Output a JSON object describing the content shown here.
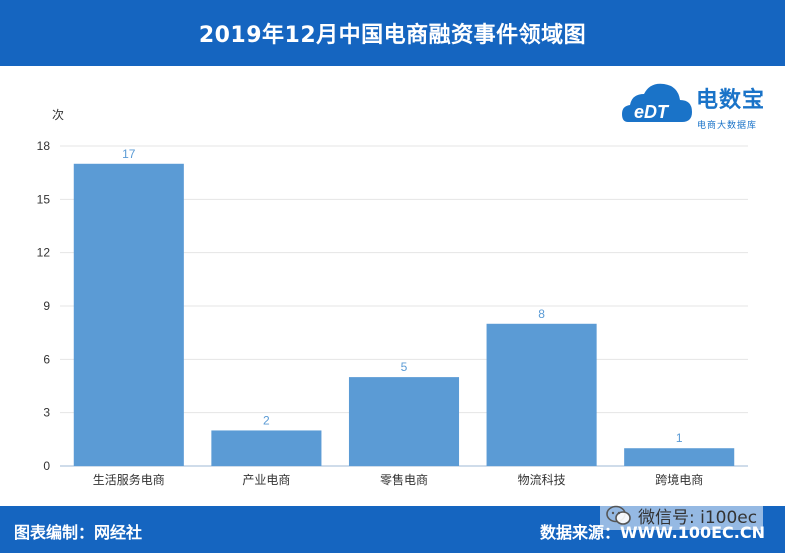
{
  "header": {
    "title": "2019年12月中国电商融资事件领域图"
  },
  "logo": {
    "brand": "电数宝",
    "mark": "eDT",
    "sub": "电商大数据库"
  },
  "footer": {
    "left": "图表编制：网经社",
    "right": "数据来源：WWW.100EC.CN"
  },
  "watermark": {
    "text": "微信号: i100ec"
  },
  "chart_data": {
    "type": "bar",
    "categories": [
      "生活服务电商",
      "产业电商",
      "零售电商",
      "物流科技",
      "跨境电商"
    ],
    "values": [
      17,
      2,
      5,
      8,
      1
    ],
    "data_labels": [
      "17",
      "2",
      "5",
      "8",
      "1"
    ],
    "ylabel": "次",
    "ylim": [
      0,
      18
    ],
    "yticks": [
      0,
      3,
      6,
      9,
      12,
      15,
      18
    ],
    "grid": true,
    "bar_color": "#5b9bd5",
    "label_color": "#5b9bd5"
  },
  "colors": {
    "header": "#1565c0",
    "bar": "#5b9bd5",
    "brand": "#1a73c8"
  }
}
